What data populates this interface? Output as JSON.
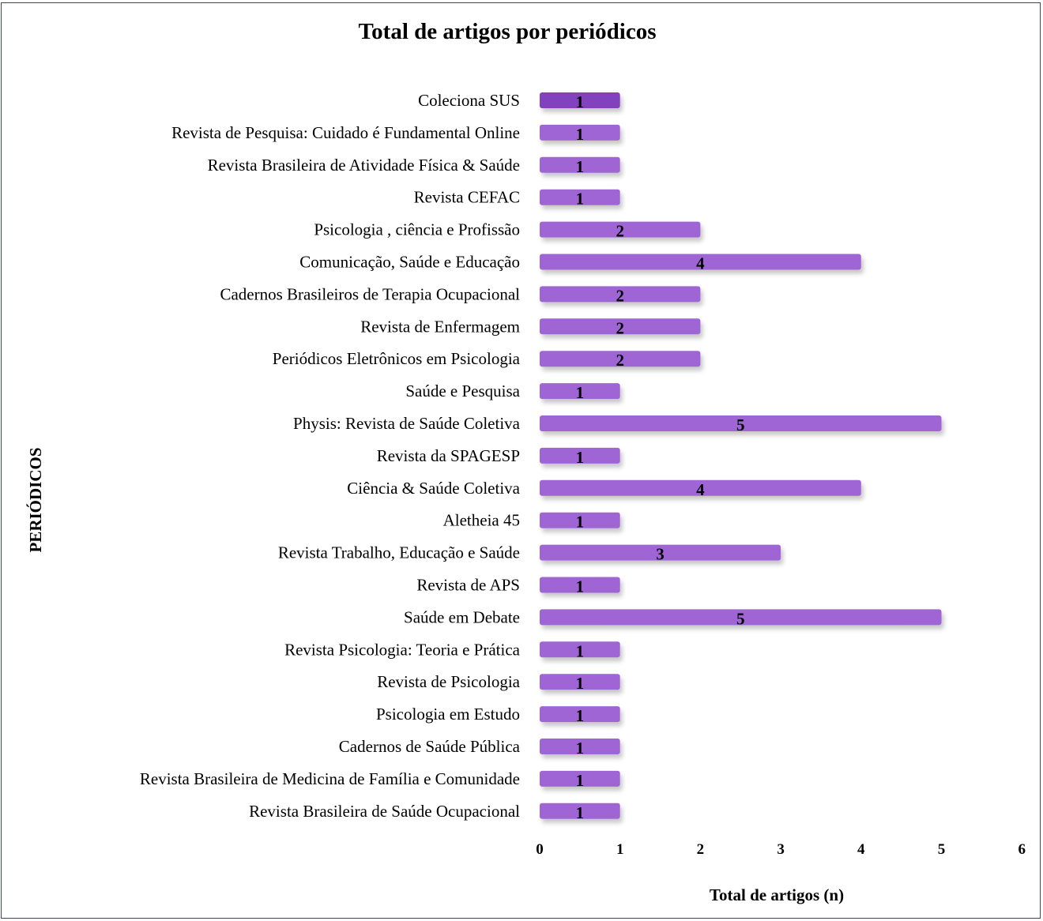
{
  "chart_data": {
    "type": "bar",
    "orientation": "horizontal",
    "title": "Total de artigos por periódicos",
    "xlabel": "Total de artigos (n)",
    "ylabel": "PERIÓDICOS",
    "xlim": [
      0,
      6
    ],
    "xticks": [
      "0",
      "1",
      "2",
      "3",
      "4",
      "5",
      "6"
    ],
    "grid": false,
    "legend": "none",
    "colors": {
      "bar": "#a065d4",
      "bar_first": "#8243bd",
      "frame": "#3c4656"
    },
    "categories": [
      "Coleciona SUS",
      "Revista de Pesquisa: Cuidado é Fundamental Online",
      "Revista Brasileira de Atividade Física & Saúde",
      "Revista CEFAC",
      "Psicologia , ciência e Profissão",
      "Comunicação, Saúde e Educação",
      "Cadernos Brasileiros de Terapia Ocupacional",
      "Revista de Enfermagem",
      "Periódicos Eletrônicos em Psicologia",
      "Saúde e Pesquisa",
      "Physis: Revista de Saúde Coletiva",
      "Revista da SPAGESP",
      "Ciência & Saúde Coletiva",
      "Aletheia 45",
      "Revista Trabalho, Educação e Saúde",
      "Revista de APS",
      "Saúde em Debate",
      "Revista Psicologia: Teoria e Prática",
      "Revista de Psicologia",
      "Psicologia em Estudo",
      "Cadernos de Saúde Pública",
      "Revista Brasileira de Medicina de Família e Comunidade",
      "Revista Brasileira de Saúde Ocupacional"
    ],
    "values": [
      1,
      1,
      1,
      1,
      2,
      4,
      2,
      2,
      2,
      1,
      5,
      1,
      4,
      1,
      3,
      1,
      5,
      1,
      1,
      1,
      1,
      1,
      1
    ],
    "data_labels": [
      "1",
      "1",
      "1",
      "1",
      "2",
      "4",
      "2",
      "2",
      "2",
      "1",
      "5",
      "1",
      "4",
      "1",
      "3",
      "1",
      "5",
      "1",
      "1",
      "1",
      "1",
      "1",
      "1"
    ]
  }
}
